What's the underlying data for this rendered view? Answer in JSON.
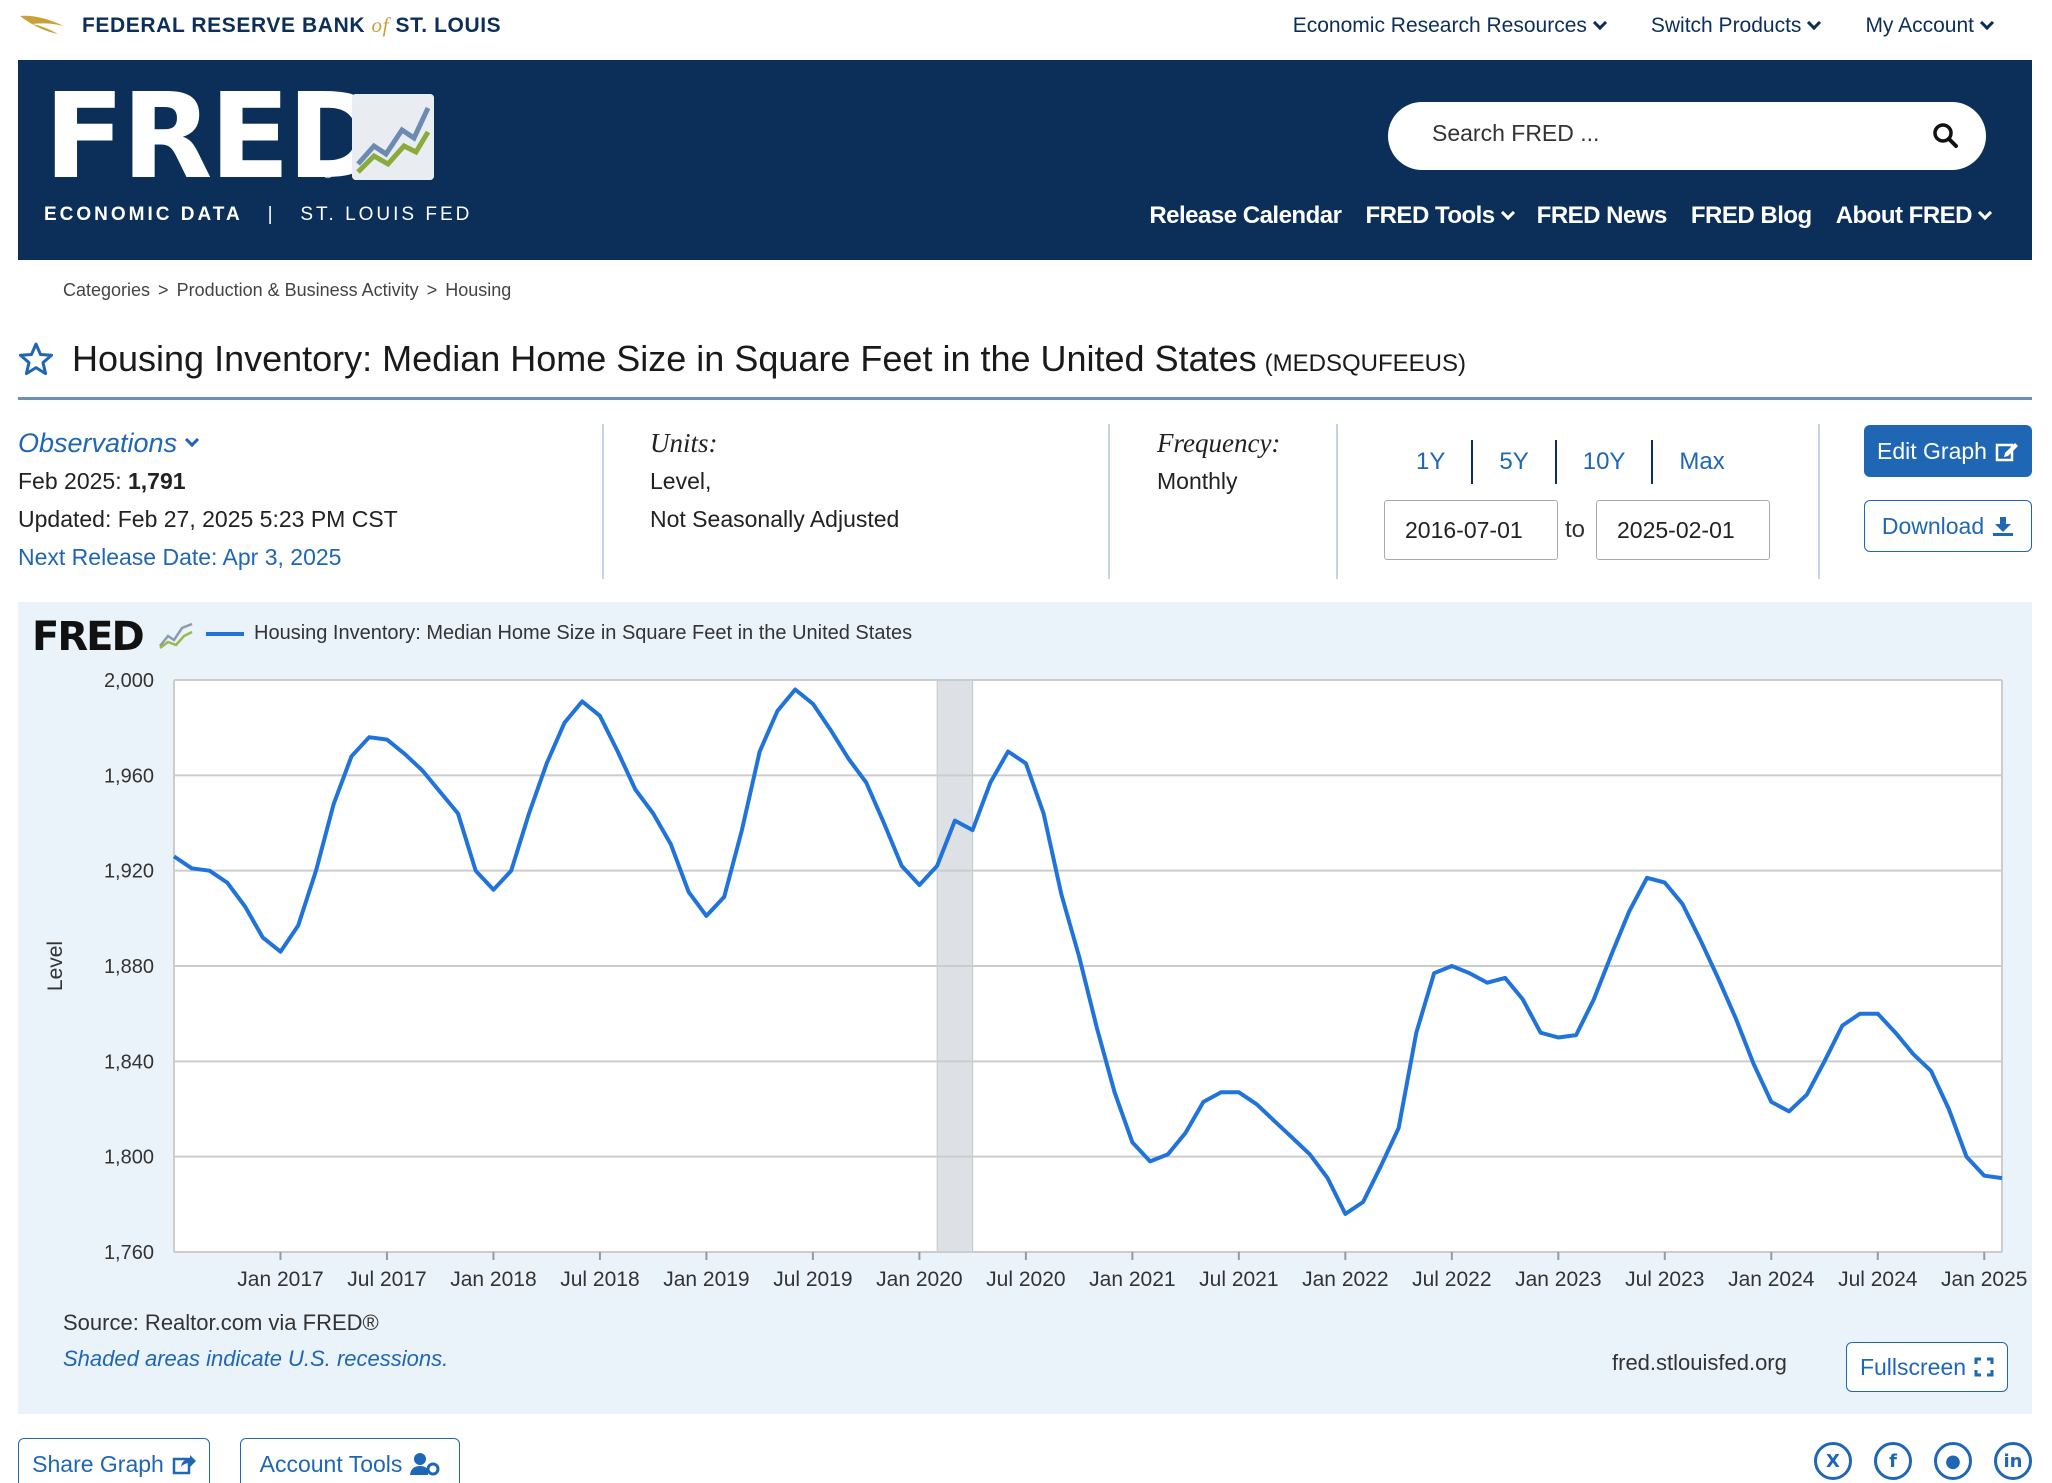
{
  "topbar": {
    "bank_name_pre": "FEDERAL RESERVE BANK",
    "bank_name_of": "of",
    "bank_name_post": "ST. LOUIS",
    "nav": [
      "Economic Research Resources",
      "Switch Products",
      "My Account"
    ]
  },
  "banner": {
    "logo_text": "FRED",
    "registered": "®",
    "sub_left": "ECONOMIC DATA",
    "sub_sep": "|",
    "sub_right": "ST. LOUIS FED",
    "search_placeholder": "Search FRED ...",
    "nav": [
      "Release Calendar",
      "FRED Tools",
      "FRED News",
      "FRED Blog",
      "About FRED"
    ]
  },
  "breadcrumb": [
    "Categories",
    ">",
    "Production & Business Activity",
    ">",
    "Housing"
  ],
  "series": {
    "title": "Housing Inventory: Median Home Size in Square Feet in the United States",
    "id": "(MEDSQUFEEUS)"
  },
  "observations": {
    "label": "Observations",
    "latest_date": "Feb 2025:",
    "latest_value": "1,791",
    "updated": "Updated: Feb 27, 2025 5:23 PM CST",
    "next_release": "Next Release Date: Apr 3, 2025"
  },
  "units": {
    "label": "Units:",
    "line1": "Level,",
    "line2": "Not Seasonally Adjusted"
  },
  "frequency": {
    "label": "Frequency:",
    "value": "Monthly"
  },
  "periods": [
    "1Y",
    "5Y",
    "10Y",
    "Max"
  ],
  "date_range": {
    "start": "2016-07-01",
    "to": "to",
    "end": "2025-02-01"
  },
  "buttons": {
    "edit_graph": "Edit Graph",
    "download": "Download",
    "fullscreen": "Fullscreen",
    "share_graph": "Share Graph",
    "account_tools": "Account Tools"
  },
  "chart_footer": {
    "source": "Source: Realtor.com via FRED®",
    "recession_note": "Shaded areas indicate U.S. recessions.",
    "site": "fred.stlouisfed.org"
  },
  "socials": [
    "x-icon",
    "facebook-icon",
    "reddit-icon",
    "linkedin-icon"
  ],
  "colors": {
    "navy": "#0c2f5a",
    "link_blue": "#1f66b5",
    "series_line": "#1f73da",
    "panel_bg": "#eaf2fa"
  },
  "chart_data": {
    "type": "line",
    "legend": "Housing Inventory: Median Home Size in Square Feet in the United States",
    "xlabel": "",
    "ylabel": "Level",
    "ylim": [
      1760,
      2000
    ],
    "yticks": [
      1760,
      1800,
      1840,
      1880,
      1920,
      1960,
      2000
    ],
    "yticklabels": [
      "1,760",
      "1,800",
      "1,840",
      "1,880",
      "1,920",
      "1,960",
      "2,000"
    ],
    "xticks": [
      "2017-01",
      "2017-07",
      "2018-01",
      "2018-07",
      "2019-01",
      "2019-07",
      "2020-01",
      "2020-07",
      "2021-01",
      "2021-07",
      "2022-01",
      "2022-07",
      "2023-01",
      "2023-07",
      "2024-01",
      "2024-07",
      "2025-01"
    ],
    "xticklabels": [
      "Jan 2017",
      "Jul 2017",
      "Jan 2018",
      "Jul 2018",
      "Jan 2019",
      "Jul 2019",
      "Jan 2020",
      "Jul 2020",
      "Jan 2021",
      "Jul 2021",
      "Jan 2022",
      "Jul 2022",
      "Jan 2023",
      "Jul 2023",
      "Jan 2024",
      "Jul 2024",
      "Jan 2025"
    ],
    "x_start": "2016-07",
    "x_end": "2025-02",
    "recessions": [
      {
        "start": "2020-02",
        "end": "2020-04"
      }
    ],
    "grid": true,
    "legend_placement": "top-left",
    "series": [
      {
        "name": "Housing Inventory: Median Home Size in Square Feet in the United States",
        "x": [
          "2016-07",
          "2016-08",
          "2016-09",
          "2016-10",
          "2016-11",
          "2016-12",
          "2017-01",
          "2017-02",
          "2017-03",
          "2017-04",
          "2017-05",
          "2017-06",
          "2017-07",
          "2017-08",
          "2017-09",
          "2017-10",
          "2017-11",
          "2017-12",
          "2018-01",
          "2018-02",
          "2018-03",
          "2018-04",
          "2018-05",
          "2018-06",
          "2018-07",
          "2018-08",
          "2018-09",
          "2018-10",
          "2018-11",
          "2018-12",
          "2019-01",
          "2019-02",
          "2019-03",
          "2019-04",
          "2019-05",
          "2019-06",
          "2019-07",
          "2019-08",
          "2019-09",
          "2019-10",
          "2019-11",
          "2019-12",
          "2020-01",
          "2020-02",
          "2020-03",
          "2020-04",
          "2020-05",
          "2020-06",
          "2020-07",
          "2020-08",
          "2020-09",
          "2020-10",
          "2020-11",
          "2020-12",
          "2021-01",
          "2021-02",
          "2021-03",
          "2021-04",
          "2021-05",
          "2021-06",
          "2021-07",
          "2021-08",
          "2021-09",
          "2021-10",
          "2021-11",
          "2021-12",
          "2022-01",
          "2022-02",
          "2022-03",
          "2022-04",
          "2022-05",
          "2022-06",
          "2022-07",
          "2022-08",
          "2022-09",
          "2022-10",
          "2022-11",
          "2022-12",
          "2023-01",
          "2023-02",
          "2023-03",
          "2023-04",
          "2023-05",
          "2023-06",
          "2023-07",
          "2023-08",
          "2023-09",
          "2023-10",
          "2023-11",
          "2023-12",
          "2024-01",
          "2024-02",
          "2024-03",
          "2024-04",
          "2024-05",
          "2024-06",
          "2024-07",
          "2024-08",
          "2024-09",
          "2024-10",
          "2024-11",
          "2024-12",
          "2025-01",
          "2025-02"
        ],
        "values": [
          1926,
          1921,
          1920,
          1915,
          1905,
          1892,
          1886,
          1897,
          1920,
          1948,
          1968,
          1976,
          1975,
          1969,
          1962,
          1953,
          1944,
          1920,
          1912,
          1920,
          1944,
          1965,
          1982,
          1991,
          1985,
          1970,
          1954,
          1944,
          1931,
          1911,
          1901,
          1909,
          1937,
          1970,
          1987,
          1996,
          1990,
          1979,
          1967,
          1957,
          1940,
          1922,
          1914,
          1922,
          1941,
          1937,
          1957,
          1970,
          1965,
          1944,
          1910,
          1884,
          1854,
          1827,
          1806,
          1798,
          1801,
          1810,
          1823,
          1827,
          1827,
          1822,
          1815,
          1808,
          1801,
          1791,
          1776,
          1781,
          1796,
          1812,
          1852,
          1877,
          1880,
          1877,
          1873,
          1875,
          1866,
          1852,
          1850,
          1851,
          1866,
          1885,
          1903,
          1917,
          1915,
          1906,
          1891,
          1875,
          1858,
          1839,
          1823,
          1819,
          1826,
          1840,
          1855,
          1860,
          1860,
          1852,
          1843,
          1836,
          1820,
          1800,
          1792,
          1791
        ]
      }
    ]
  }
}
